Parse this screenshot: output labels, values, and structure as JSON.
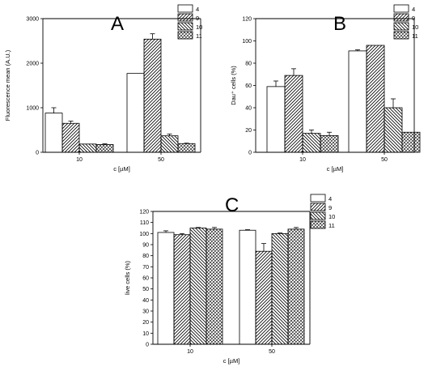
{
  "chart_data": [
    {
      "type": "bar",
      "panel_label": "A",
      "categories": [
        "10",
        "50"
      ],
      "series": [
        {
          "name": "4",
          "values": [
            880,
            1770
          ],
          "errors": [
            120,
            0
          ],
          "pattern": "blank"
        },
        {
          "name": "9",
          "values": [
            650,
            2540
          ],
          "errors": [
            50,
            120
          ],
          "pattern": "hatch-right"
        },
        {
          "name": "10",
          "values": [
            185,
            370
          ],
          "errors": [
            0,
            40
          ],
          "pattern": "hatch-left"
        },
        {
          "name": "11",
          "values": [
            175,
            195
          ],
          "errors": [
            15,
            10
          ],
          "pattern": "crosshatch"
        }
      ],
      "xlabel": "c [µM]",
      "ylabel": "Fluorescence mean (A.U.)",
      "ylim": [
        0,
        3000
      ],
      "yticks": [
        "0",
        "1000",
        "2000",
        "3000"
      ],
      "legend": "top-right"
    },
    {
      "type": "bar",
      "panel_label": "B",
      "categories": [
        "10",
        "50"
      ],
      "series": [
        {
          "name": "4",
          "values": [
            59,
            91
          ],
          "errors": [
            5,
            1
          ],
          "pattern": "blank"
        },
        {
          "name": "9",
          "values": [
            69,
            96
          ],
          "errors": [
            6,
            0
          ],
          "pattern": "hatch-right"
        },
        {
          "name": "10",
          "values": [
            17,
            40
          ],
          "errors": [
            3,
            8
          ],
          "pattern": "hatch-left"
        },
        {
          "name": "11",
          "values": [
            15,
            18
          ],
          "errors": [
            3,
            0
          ],
          "pattern": "crosshatch"
        }
      ],
      "xlabel": "c [µM]",
      "ylabel": "Dau⁺ cells (%)",
      "ylim": [
        0,
        120
      ],
      "yticks": [
        "0",
        "20",
        "40",
        "60",
        "80",
        "100",
        "120"
      ],
      "legend": "top-right"
    },
    {
      "type": "bar",
      "panel_label": "C",
      "categories": [
        "10",
        "50"
      ],
      "series": [
        {
          "name": "4",
          "values": [
            101,
            103
          ],
          "errors": [
            1.5,
            0.5
          ],
          "pattern": "blank"
        },
        {
          "name": "9",
          "values": [
            99,
            84
          ],
          "errors": [
            1,
            7
          ],
          "pattern": "hatch-right"
        },
        {
          "name": "10",
          "values": [
            105,
            100
          ],
          "errors": [
            0.5,
            0.5
          ],
          "pattern": "hatch-left"
        },
        {
          "name": "11",
          "values": [
            104,
            104
          ],
          "errors": [
            1.5,
            1.5
          ],
          "pattern": "crosshatch"
        }
      ],
      "xlabel": "c [µM]",
      "ylabel": "live cells (%)",
      "ylim": [
        0,
        120
      ],
      "yticks": [
        "0",
        "10",
        "20",
        "30",
        "40",
        "50",
        "60",
        "70",
        "80",
        "90",
        "100",
        "110",
        "120"
      ],
      "legend": "top-right"
    }
  ],
  "colors": {
    "axis": "#000000",
    "bar_stroke": "#000000",
    "bar_fill": "#ffffff",
    "pattern": "#000000"
  }
}
